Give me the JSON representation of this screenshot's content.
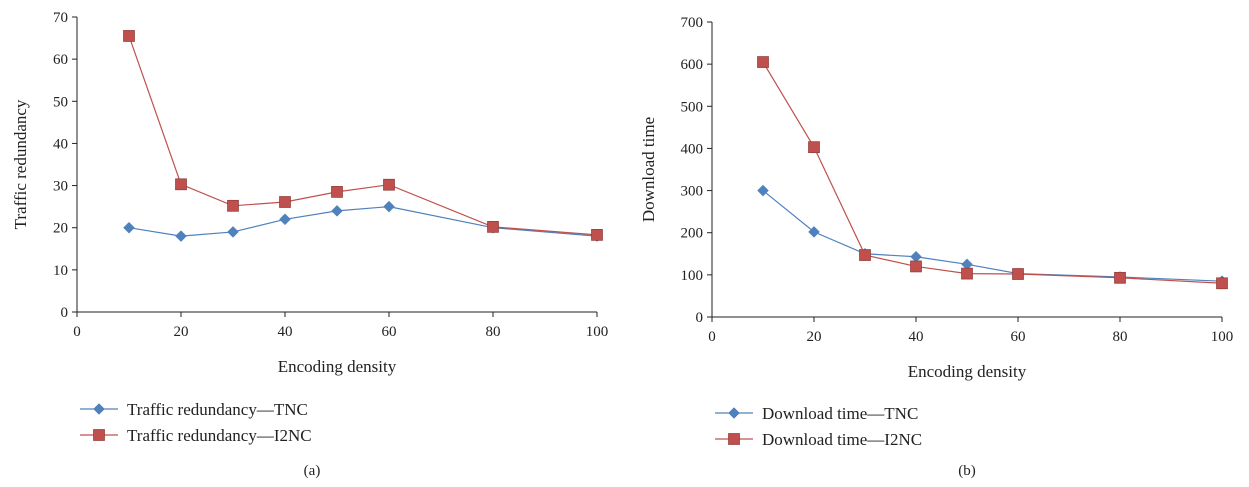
{
  "colors": {
    "tnc": "#4f81bd",
    "i2nc": "#c0504d",
    "axis": "#222222"
  },
  "chart_data": [
    {
      "type": "line",
      "caption": "(a)",
      "xlabel": "Encoding density",
      "ylabel": "Traffic redundancy",
      "xlim": [
        0,
        100
      ],
      "ylim": [
        0,
        70
      ],
      "xticks": [
        0,
        20,
        40,
        60,
        80,
        100
      ],
      "yticks": [
        0,
        10,
        20,
        30,
        40,
        50,
        60,
        70
      ],
      "grid": false,
      "legend_position": "bottom-left",
      "x": [
        10,
        20,
        30,
        40,
        50,
        60,
        80,
        100
      ],
      "series": [
        {
          "name": "Traffic redundancy—TNC",
          "marker": "diamond",
          "color": "#4f81bd",
          "values": [
            20,
            18,
            19,
            22,
            24,
            25,
            20,
            18
          ]
        },
        {
          "name": "Traffic redundancy—I2NC",
          "marker": "square",
          "color": "#c0504d",
          "values": [
            65.5,
            30.3,
            25.2,
            26.1,
            28.5,
            30.2,
            20.2,
            18.3
          ]
        }
      ]
    },
    {
      "type": "line",
      "caption": "(b)",
      "xlabel": "Encoding density",
      "ylabel": "Download time",
      "xlim": [
        0,
        100
      ],
      "ylim": [
        0,
        700
      ],
      "xticks": [
        0,
        20,
        40,
        60,
        80,
        100
      ],
      "yticks": [
        0,
        100,
        200,
        300,
        400,
        500,
        600,
        700
      ],
      "grid": false,
      "legend_position": "bottom-left",
      "x": [
        10,
        20,
        30,
        40,
        50,
        60,
        80,
        100
      ],
      "series": [
        {
          "name": "Download time—TNC",
          "marker": "diamond",
          "color": "#4f81bd",
          "values": [
            300,
            202,
            150,
            143,
            125,
            103,
            95,
            85
          ]
        },
        {
          "name": "Download time—I2NC",
          "marker": "square",
          "color": "#c0504d",
          "values": [
            605,
            403,
            147,
            120,
            103,
            102,
            93,
            80
          ]
        }
      ]
    }
  ]
}
